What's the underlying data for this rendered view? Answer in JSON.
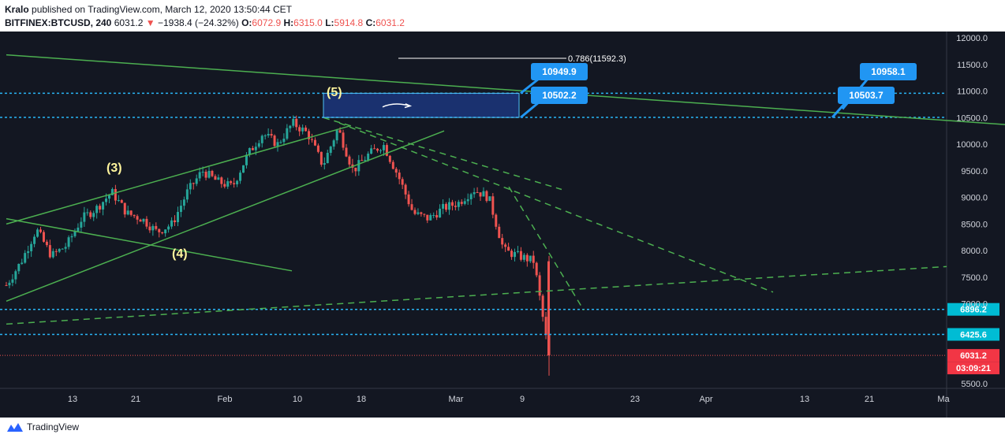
{
  "header": {
    "author": "Kralo",
    "published_text": "published on TradingView.com, March 12, 2020 13:50:44 CET",
    "symbol": "BITFINEX:BTCUSD, 240",
    "last": "6031.2",
    "change": "−1938.4 (−24.32%)",
    "o_label": "O:",
    "o_value": "6072.9",
    "h_label": "H:",
    "h_value": "6315.0",
    "l_label": "L:",
    "l_value": "5914.8",
    "c_label": "C:",
    "c_value": "6031.2"
  },
  "footer": {
    "brand": "TradingView"
  },
  "colors": {
    "background": "#131722",
    "up": "#26a69a",
    "down": "#ef5350",
    "trend": "#4caf50",
    "level": "#29b6f6",
    "label": "#2196f3"
  },
  "chart_data": {
    "type": "candlestick",
    "symbol": "BITFINEX:BTCUSD",
    "interval": "240",
    "ylim": [
      5500,
      12000
    ],
    "y_ticks": [
      "12000.0",
      "11500.0",
      "11000.0",
      "10500.0",
      "10000.0",
      "9500.0",
      "9000.0",
      "8500.0",
      "8000.0",
      "7500.0",
      "7000.0",
      "5500.0"
    ],
    "x_ticks": [
      "13",
      "21",
      "Feb",
      "10",
      "18",
      "Mar",
      "9",
      "23",
      "Apr",
      "13",
      "21",
      "Ma"
    ],
    "price_path": [
      [
        0,
        7350
      ],
      [
        1,
        7800
      ],
      [
        2,
        8400
      ],
      [
        3,
        7900
      ],
      [
        4,
        8100
      ],
      [
        5,
        8600
      ],
      [
        6,
        8800
      ],
      [
        7,
        9100
      ],
      [
        8,
        8700
      ],
      [
        9,
        8600
      ],
      [
        10,
        8350
      ],
      [
        11,
        8500
      ],
      [
        12,
        9100
      ],
      [
        13,
        9500
      ],
      [
        14,
        9300
      ],
      [
        15,
        9200
      ],
      [
        16,
        9800
      ],
      [
        17,
        10200
      ],
      [
        18,
        10000
      ],
      [
        19,
        10400
      ],
      [
        20,
        10200
      ],
      [
        21,
        9600
      ],
      [
        22,
        10300
      ],
      [
        23,
        9500
      ],
      [
        24,
        9800
      ],
      [
        25,
        10000
      ],
      [
        26,
        9400
      ],
      [
        27,
        8700
      ],
      [
        28,
        8600
      ],
      [
        29,
        8800
      ],
      [
        30,
        8900
      ],
      [
        31,
        9150
      ],
      [
        32,
        9000
      ],
      [
        33,
        8000
      ],
      [
        34,
        7900
      ],
      [
        35,
        7800
      ],
      [
        36,
        6000
      ]
    ],
    "levels": [
      {
        "value": 10958.1,
        "label": "10958.1"
      },
      {
        "value": 10503.7,
        "label": "10503.7"
      },
      {
        "value": 6896.2,
        "label": "6896.2"
      },
      {
        "value": 6425.6,
        "label": "6425.6"
      }
    ],
    "box_labels": [
      "10949.9",
      "10502.2"
    ],
    "fib_label": "0.786(11592.3)",
    "wave_labels": [
      "(3)",
      "(4)",
      "(5)"
    ],
    "last_price": {
      "value": 6031.2,
      "label": "6031.2",
      "countdown": "03:09:21"
    }
  }
}
